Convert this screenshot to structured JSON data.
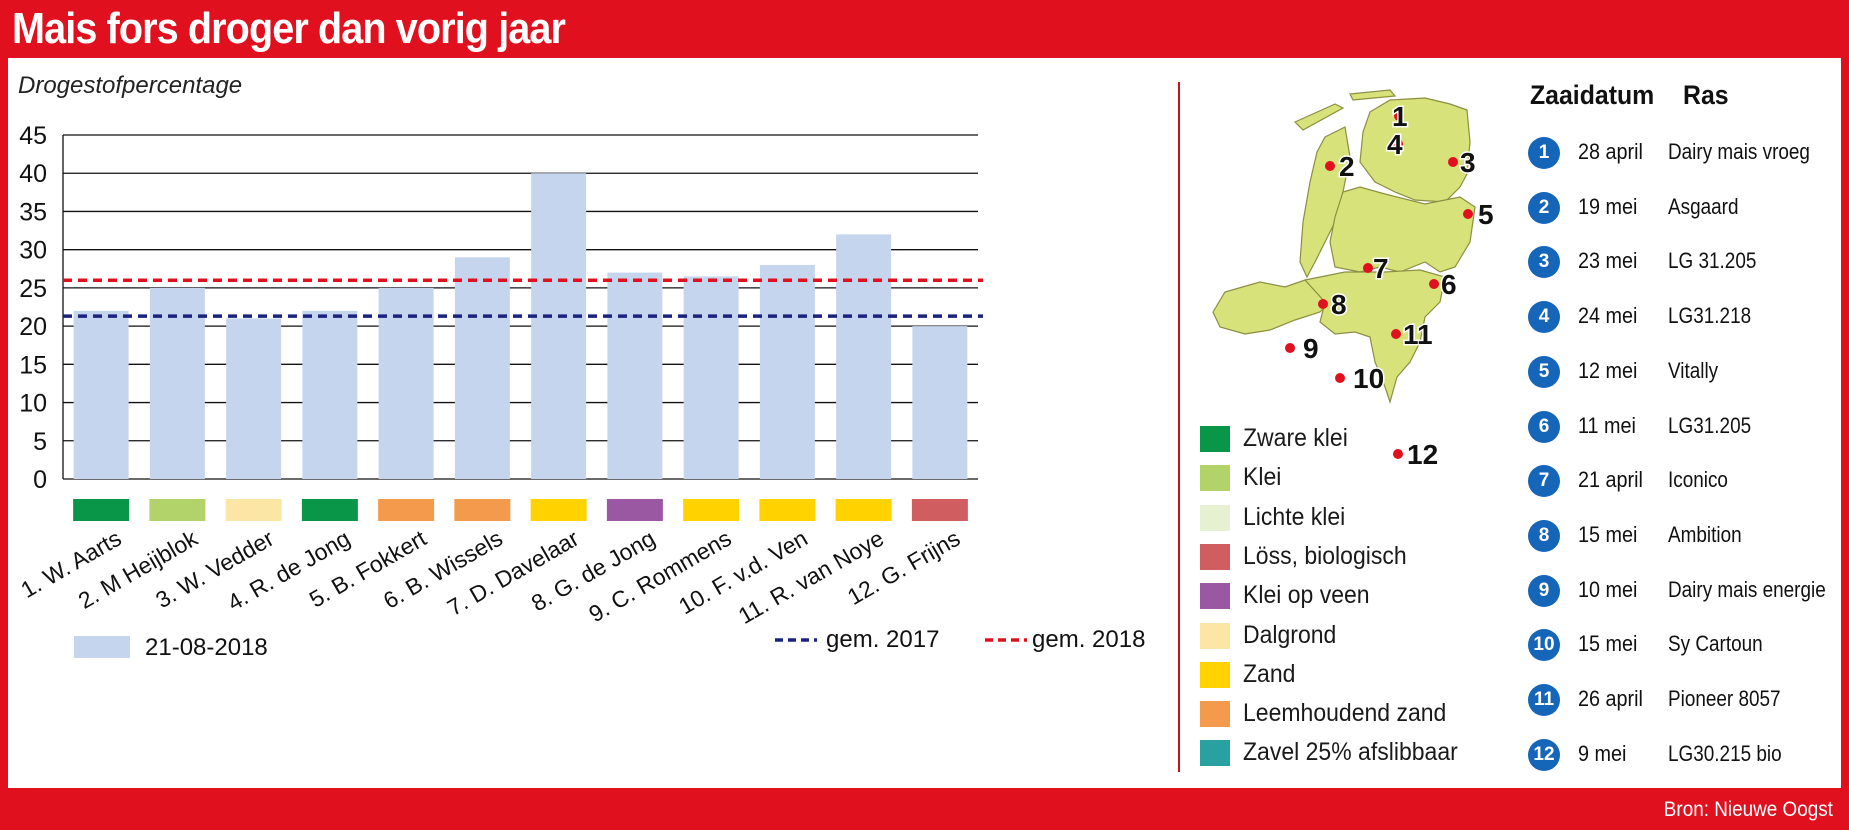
{
  "header": {
    "title": "Mais fors droger dan vorig jaar"
  },
  "footer": {
    "source": "Bron: Nieuwe Oogst"
  },
  "chart_data": {
    "type": "bar",
    "ylabel": "Drogestofpercentage",
    "ylim": [
      0,
      45
    ],
    "yticks": [
      0,
      5,
      10,
      15,
      20,
      25,
      30,
      35,
      40,
      45
    ],
    "grid": true,
    "categories": [
      "1. W. Aarts",
      "2. M Heijblok",
      "3. W. Vedder",
      "4. R. de Jong",
      "5. B. Fokkert",
      "6. B. Wissels",
      "7. D. Davelaar",
      "8. G. de Jong",
      "9. C. Rommens",
      "10. F. v.d. Ven",
      "11. R. van Noye",
      "12. G. Frijns"
    ],
    "series": [
      {
        "name": "21-08-2018",
        "color": "#c6d5ee",
        "values": [
          22,
          25,
          21,
          22,
          25,
          29,
          40,
          27,
          26.5,
          28,
          32,
          20
        ]
      }
    ],
    "reference_lines": [
      {
        "name": "gem. 2017",
        "value": 21.3,
        "color": "#1a237e",
        "style": "dashed"
      },
      {
        "name": "gem. 2018",
        "value": 26,
        "color": "#e0101e",
        "style": "dashed"
      }
    ],
    "category_soil_colors": [
      "#0a9648",
      "#b2d26a",
      "#fbe6a6",
      "#0a9648",
      "#f39a4c",
      "#f39a4c",
      "#ffd200",
      "#9a58a3",
      "#ffd200",
      "#ffd200",
      "#ffd200",
      "#d05d5f"
    ]
  },
  "soil_legend": [
    {
      "label": "Zware klei",
      "color": "#0a9648"
    },
    {
      "label": "Klei",
      "color": "#b2d26a"
    },
    {
      "label": "Lichte klei",
      "color": "#e6f1d1"
    },
    {
      "label": "Löss, biologisch",
      "color": "#d05d5f"
    },
    {
      "label": "Klei op veen",
      "color": "#9a58a3"
    },
    {
      "label": "Dalgrond",
      "color": "#fbe6a6"
    },
    {
      "label": "Zand",
      "color": "#ffd200"
    },
    {
      "label": "Leemhoudend zand",
      "color": "#f39a4c"
    },
    {
      "label": "Zavel 25% afslibbaar",
      "color": "#2aa1a1"
    }
  ],
  "table": {
    "col_date": "Zaaidatum",
    "col_ras": "Ras",
    "rows": [
      {
        "num": "1",
        "date": "28 april",
        "ras": "Dairy mais vroeg"
      },
      {
        "num": "2",
        "date": "19 mei",
        "ras": "Asgaard"
      },
      {
        "num": "3",
        "date": "23 mei",
        "ras": "LG 31.205"
      },
      {
        "num": "4",
        "date": "24 mei",
        "ras": "LG31.218"
      },
      {
        "num": "5",
        "date": "12 mei",
        "ras": "Vitally"
      },
      {
        "num": "6",
        "date": "11 mei",
        "ras": "LG31.205"
      },
      {
        "num": "7",
        "date": "21 april",
        "ras": "Iconico"
      },
      {
        "num": "8",
        "date": "15 mei",
        "ras": "Ambition"
      },
      {
        "num": "9",
        "date": "10 mei",
        "ras": "Dairy mais energie"
      },
      {
        "num": "10",
        "date": "15 mei",
        "ras": "Sy Cartoun"
      },
      {
        "num": "11",
        "date": "26 april",
        "ras": "Pioneer 8057"
      },
      {
        "num": "12",
        "date": "9 mei",
        "ras": "LG30.215 bio"
      }
    ]
  },
  "map": {
    "map_color": "#d8e27a",
    "dot_color": "#e0101e",
    "markers": [
      "1",
      "2",
      "3",
      "4",
      "5",
      "6",
      "7",
      "8",
      "9",
      "10",
      "11",
      "12"
    ]
  }
}
